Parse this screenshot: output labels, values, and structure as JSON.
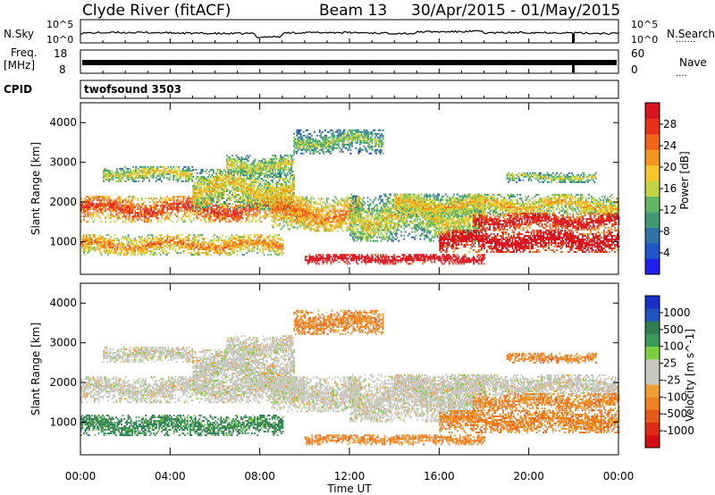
{
  "header": {
    "station": "Clyde River (fitACF)",
    "beam": "Beam 13",
    "dates": "30/Apr/2015 - 01/May/2015"
  },
  "top_panels": {
    "nsky_label": "N.Sky",
    "nsky_max": "10^5",
    "nsky_min": "10^0",
    "nsearch_label": "N.Search",
    "nsearch_max": "10^5",
    "nsearch_min": "10^0",
    "freq_label": "Freq.",
    "freq_unit": "[MHz]",
    "freq_max": "18",
    "freq_min": "8",
    "nave_label": "Nave",
    "nave_max": "60",
    "nave_min": "0",
    "cpid_label": "CPID",
    "cpid_value": "twofsound 3503"
  },
  "colors": {
    "power_scale": [
      "#1f1ff0",
      "#1f55c8",
      "#2f72a8",
      "#3f9a74",
      "#62b862",
      "#c4d440",
      "#f6c62a",
      "#f4951e",
      "#f0641a",
      "#e83018",
      "#d8141e"
    ],
    "velocity_scale": [
      "#1a2fc8",
      "#1f55c0",
      "#2f7f4e",
      "#3a9a5a",
      "#7fd040",
      "#c8c8c0",
      "#c8c8c0",
      "#f0a030",
      "#f08020",
      "#e85a18",
      "#e02a14",
      "#d40c10"
    ]
  },
  "chart_data": [
    {
      "type": "heatmap",
      "name": "power",
      "xlabel": "",
      "ylabel": "Slant Range [km]",
      "x_ticks": [
        "00:00",
        "04:00",
        "08:00",
        "12:00",
        "16:00",
        "20:00",
        "00:00"
      ],
      "y_ticks": [
        1000,
        2000,
        3000,
        4000
      ],
      "xlim_hours": [
        0,
        24
      ],
      "ylim_km": [
        180,
        4500
      ],
      "colorbar_label": "Power [dB]",
      "colorbar_ticks": [
        4,
        8,
        12,
        16,
        20,
        24,
        28
      ],
      "colorbar_range": [
        0,
        30
      ]
    },
    {
      "type": "heatmap",
      "name": "velocity",
      "xlabel": "Time UT",
      "ylabel": "Slant Range [km]",
      "x_ticks": [
        "00:00",
        "04:00",
        "08:00",
        "12:00",
        "16:00",
        "20:00",
        "00:00"
      ],
      "y_ticks": [
        1000,
        2000,
        3000,
        4000
      ],
      "xlim_hours": [
        0,
        24
      ],
      "ylim_km": [
        180,
        4500
      ],
      "colorbar_label": "Velocity [m s^-1]",
      "colorbar_ticks": [
        "1000",
        "500",
        "100",
        "25",
        "-25",
        "-100",
        "-500",
        "-1000"
      ]
    }
  ]
}
